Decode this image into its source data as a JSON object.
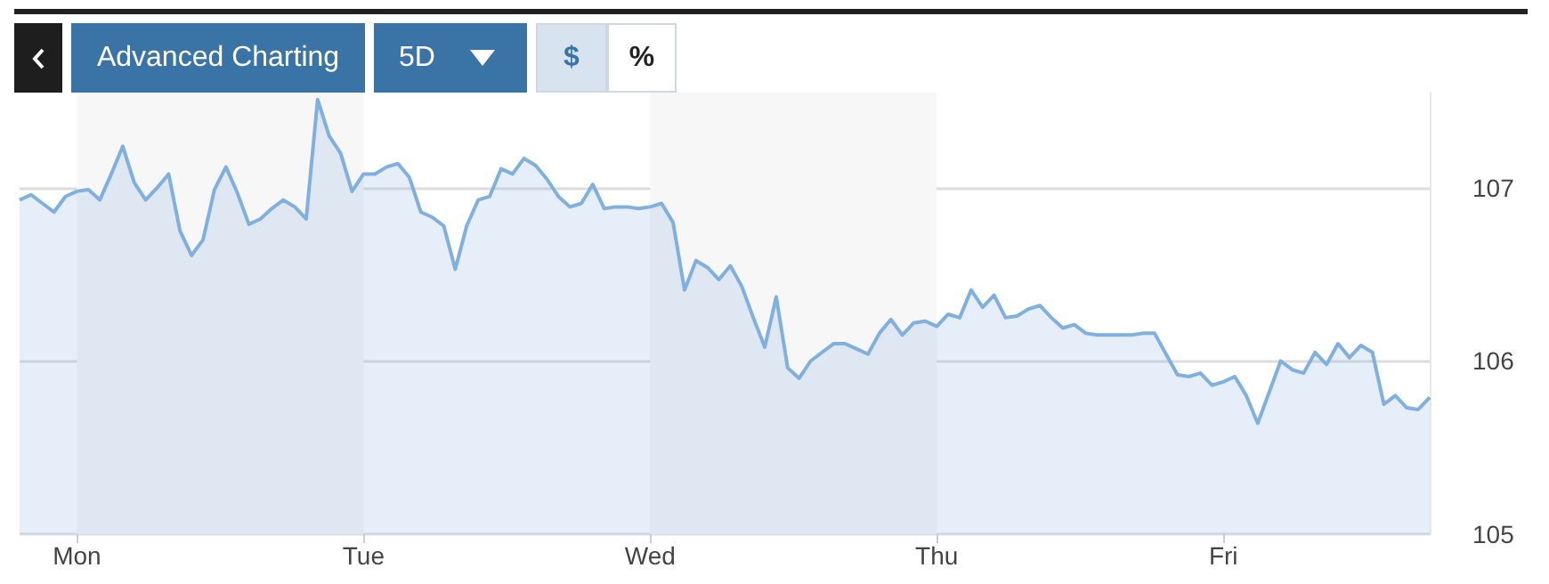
{
  "chart_data": {
    "type": "area",
    "annotations": [
      "Advanced Charting",
      "5D",
      "$",
      "%"
    ],
    "categories": [
      null,
      null,
      null,
      null,
      null,
      "Mon",
      null,
      null,
      null,
      null,
      null,
      null,
      null,
      null,
      null,
      null,
      null,
      null,
      null,
      null,
      null,
      null,
      null,
      null,
      null,
      null,
      null,
      null,
      null,
      null,
      "Tue",
      null,
      null,
      null,
      null,
      null,
      null,
      null,
      null,
      null,
      null,
      null,
      null,
      null,
      null,
      null,
      null,
      null,
      null,
      null,
      null,
      null,
      null,
      null,
      null,
      "Wed",
      null,
      null,
      null,
      null,
      null,
      null,
      null,
      null,
      null,
      null,
      null,
      null,
      null,
      null,
      null,
      null,
      null,
      null,
      null,
      null,
      null,
      null,
      null,
      null,
      "Thu",
      null,
      null,
      null,
      null,
      null,
      null,
      null,
      null,
      null,
      null,
      null,
      null,
      null,
      null,
      null,
      null,
      null,
      null,
      null,
      null,
      null,
      null,
      null,
      null,
      "Fri",
      null,
      null,
      null,
      null,
      null,
      null,
      null,
      null,
      null,
      null,
      null,
      null,
      null,
      null,
      null,
      null,
      null,
      null
    ],
    "ylim": [
      105,
      107.55
    ],
    "yticks": [
      105,
      106,
      107
    ],
    "grid": "y",
    "marker": "none",
    "bands": [
      {
        "axis": "x",
        "from": "Mon",
        "to": "Tue",
        "color": "#f7f7f7"
      },
      {
        "axis": "x",
        "from": "Wed",
        "to": "Thu",
        "color": "#f7f7f7"
      }
    ],
    "series": [
      {
        "color": "#80b0e0",
        "values": [
          106.93,
          106.96,
          106.91,
          106.86,
          106.95,
          106.98,
          106.99,
          106.93,
          107.08,
          107.24,
          107.03,
          106.93,
          107.0,
          107.08,
          106.75,
          106.61,
          106.7,
          106.99,
          107.12,
          106.97,
          106.79,
          106.82,
          106.88,
          106.93,
          106.89,
          106.82,
          107.51,
          107.3,
          107.2,
          106.98,
          107.08,
          107.08,
          107.12,
          107.14,
          107.06,
          106.86,
          106.83,
          106.78,
          106.53,
          106.78,
          106.93,
          106.95,
          107.11,
          107.08,
          107.17,
          107.13,
          107.05,
          106.95,
          106.89,
          106.91,
          107.02,
          106.88,
          106.89,
          106.89,
          106.88,
          106.89,
          106.91,
          106.8,
          106.41,
          106.58,
          106.54,
          106.47,
          106.55,
          106.43,
          106.25,
          106.08,
          106.37,
          105.96,
          105.9,
          106.0,
          106.05,
          106.1,
          106.1,
          106.07,
          106.04,
          106.16,
          106.24,
          106.15,
          106.22,
          106.23,
          106.2,
          106.27,
          106.25,
          106.41,
          106.31,
          106.38,
          106.25,
          106.26,
          106.3,
          106.32,
          106.25,
          106.19,
          106.21,
          106.16,
          106.15,
          106.15,
          106.15,
          106.15,
          106.16,
          106.16,
          106.04,
          105.92,
          105.91,
          105.93,
          105.86,
          105.88,
          105.91,
          105.8,
          105.64,
          105.82,
          106.0,
          105.95,
          105.93,
          106.05,
          105.98,
          106.1,
          106.02,
          106.09,
          106.05,
          105.75,
          105.8,
          105.73,
          105.72,
          105.79
        ]
      }
    ]
  }
}
